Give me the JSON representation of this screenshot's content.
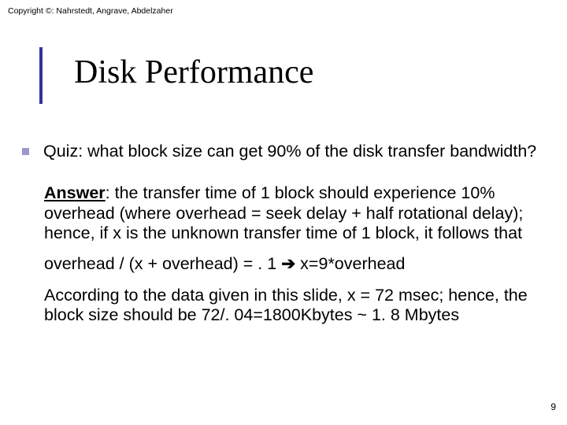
{
  "copyright": "Copyright ©: Nahrstedt, Angrave, Abdelzaher",
  "title": "Disk Performance",
  "quiz": "Quiz: what block size can get 90% of the disk transfer bandwidth?",
  "answer_label": "Answer",
  "answer_body": ": the transfer time of 1 block should experience 10% overhead (where overhead = seek delay + half rotational delay); hence, if x is the unknown transfer time of 1 block, it follows that",
  "equation_left": "overhead / (x + overhead) = . 1  ",
  "arrow": "➔",
  "equation_right": " x=9*overhead",
  "according": "According to the data given in this slide, x = 72 msec; hence, the block size should be 72/. 04=1800Kbytes ~ 1. 8 Mbytes",
  "page_number": "9",
  "colors": {
    "bullet": "#9999cc",
    "bar": "#333399",
    "text": "#000000",
    "background": "#ffffff"
  },
  "fonts": {
    "title_family": "Times New Roman",
    "title_size_pt": 32,
    "body_family": "Verdana",
    "body_size_pt": 16,
    "copyright_size_pt": 8
  }
}
